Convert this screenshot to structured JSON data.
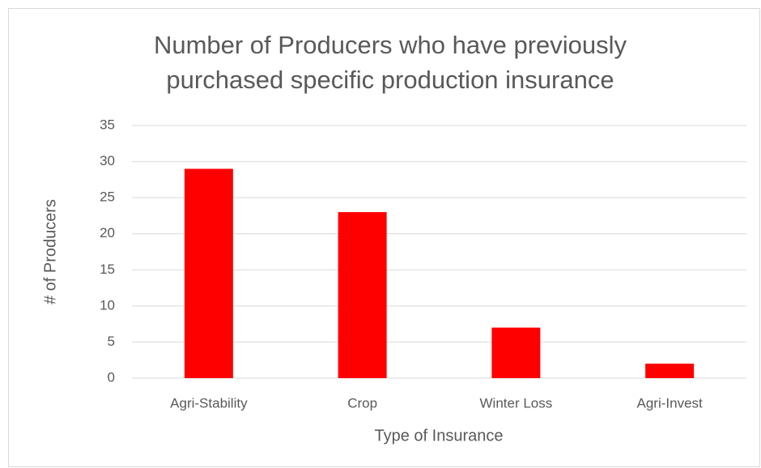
{
  "chart_data": {
    "type": "bar",
    "title": [
      "Number of Producers who have previously",
      "purchased specific production insurance"
    ],
    "x_label": "Type of Insurance",
    "y_label": "# of Producers",
    "categories": [
      "Agri-Stability",
      "Crop",
      "Winter Loss",
      "Agri-Invest"
    ],
    "values": [
      29,
      23,
      7,
      2
    ],
    "color": "#ff0000",
    "ylim": [
      0,
      35
    ],
    "yticks": [
      0,
      5,
      10,
      15,
      20,
      25,
      30,
      35
    ],
    "grid": true
  }
}
